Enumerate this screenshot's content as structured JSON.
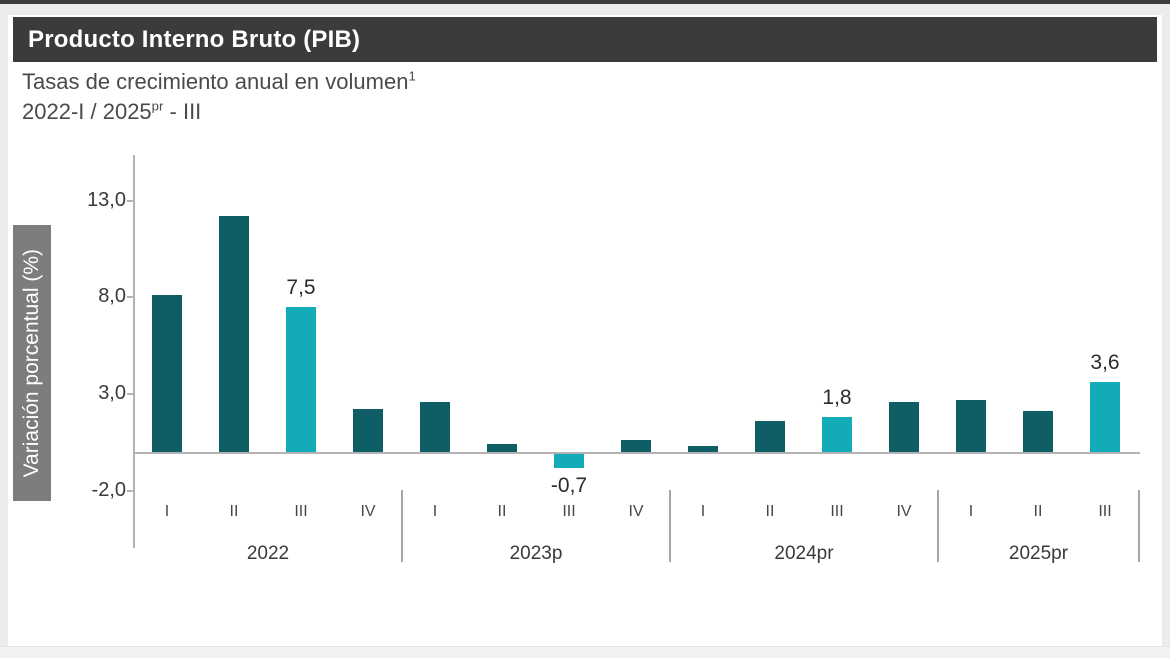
{
  "header": {
    "title": "Producto Interno Bruto (PIB)"
  },
  "subtitle": {
    "line1_text": "Tasas de crecimiento anual en volumen",
    "line1_sup": "1",
    "line2_prefix": "2022-I / 2025",
    "line2_sup": "pr",
    "line2_suffix": " - III"
  },
  "colors": {
    "bar_normal": "#0f5e66",
    "bar_highlight": "#14abb9",
    "header_bg": "#3b3b3b",
    "ylabel_box_bg": "#7d7d7d",
    "axis_line": "#b3b3b3"
  },
  "chart_data": {
    "type": "bar",
    "ylabel": "Variación porcentual (%)",
    "xlabel": "",
    "ylim": [
      -2.0,
      14.5
    ],
    "grid": false,
    "legend": "none",
    "yticks": [
      13.0,
      8.0,
      3.0,
      -2.0
    ],
    "ytick_labels": [
      "13,0",
      "8,0",
      "3,0",
      "-2,0"
    ],
    "bar_colors": {
      "normal": "#0f5e66",
      "highlight": "#14abb9"
    },
    "groups": [
      {
        "label": "2022",
        "quarters": [
          {
            "q": "I",
            "value": 8.1
          },
          {
            "q": "II",
            "value": 12.2
          },
          {
            "q": "III",
            "value": 7.5,
            "highlight": true,
            "data_label": "7,5"
          },
          {
            "q": "IV",
            "value": 2.2
          }
        ]
      },
      {
        "label": "2023p",
        "quarters": [
          {
            "q": "I",
            "value": 2.6
          },
          {
            "q": "II",
            "value": 0.4
          },
          {
            "q": "III",
            "value": -0.7,
            "highlight": true,
            "data_label": "-0,7"
          },
          {
            "q": "IV",
            "value": 0.6
          }
        ]
      },
      {
        "label": "2024pr",
        "quarters": [
          {
            "q": "I",
            "value": 0.3
          },
          {
            "q": "II",
            "value": 1.6
          },
          {
            "q": "III",
            "value": 1.8,
            "highlight": true,
            "data_label": "1,8"
          },
          {
            "q": "IV",
            "value": 2.6
          }
        ]
      },
      {
        "label": "2025pr",
        "quarters": [
          {
            "q": "I",
            "value": 2.7
          },
          {
            "q": "II",
            "value": 2.1
          },
          {
            "q": "III",
            "value": 3.6,
            "highlight": true,
            "data_label": "3,6"
          }
        ]
      }
    ]
  }
}
